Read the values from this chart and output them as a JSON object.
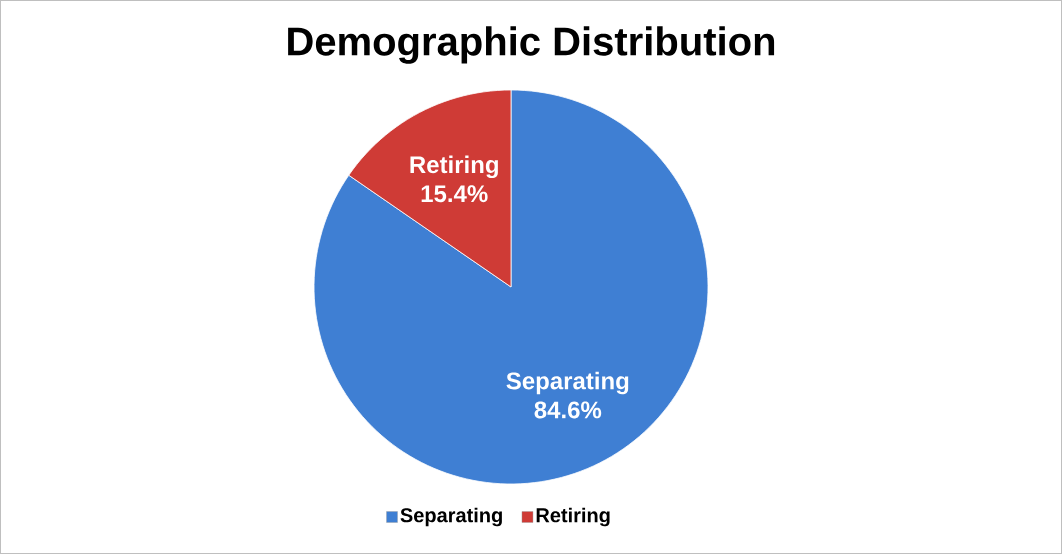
{
  "chart_data": {
    "type": "pie",
    "title": "Demographic Distribution",
    "categories": [
      "Separating",
      "Retiring"
    ],
    "values": [
      84.6,
      15.4
    ],
    "colors": [
      "#3f7fd3",
      "#cf3b36"
    ],
    "value_labels": [
      "84.6%",
      "15.4%"
    ],
    "legend": "bottom"
  }
}
